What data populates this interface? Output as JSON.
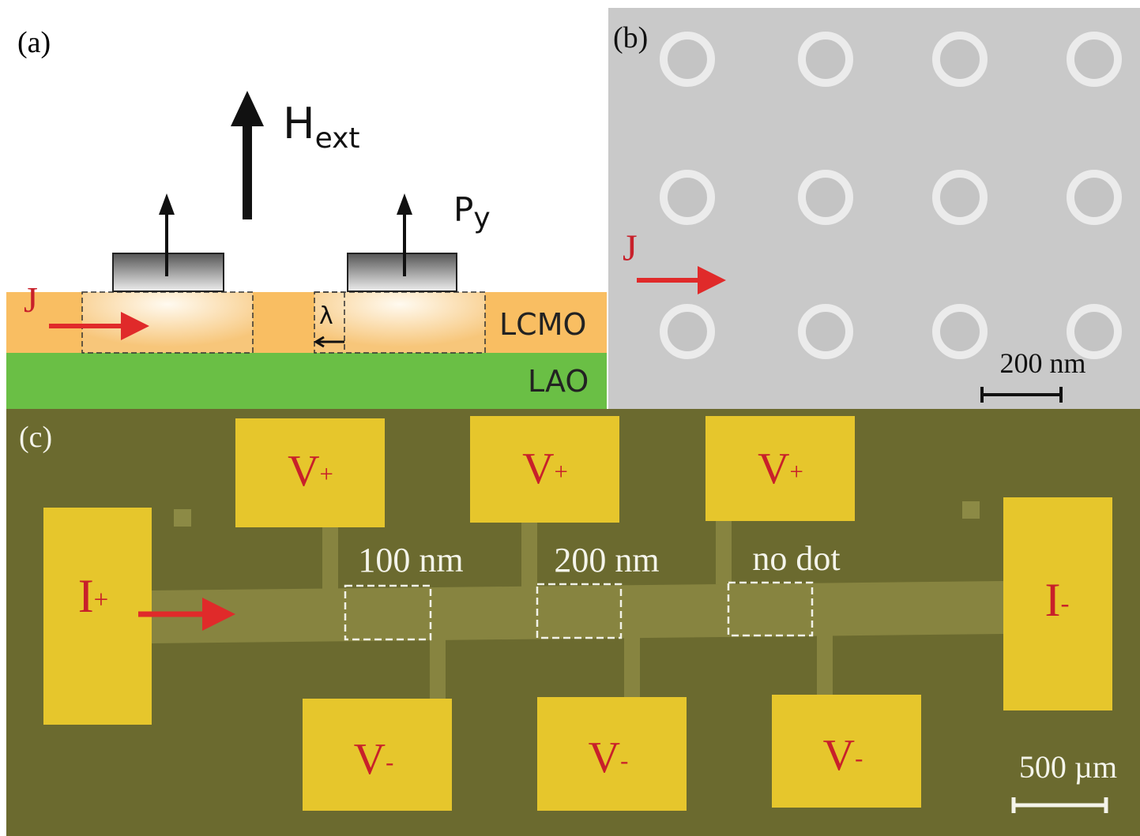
{
  "panel_a": {
    "label": "(a)",
    "field": {
      "main": "H",
      "sub": "ext"
    },
    "magnet": {
      "main": "P",
      "sub": "y"
    },
    "current": "J",
    "layer_top": "LCMO",
    "layer_bottom": "LAO",
    "penetration": "λ"
  },
  "panel_b": {
    "label": "(b)",
    "current": "J",
    "scale": "200 nm"
  },
  "panel_c": {
    "label": "(c)",
    "top_pads": [
      {
        "main": "V",
        "sub": "+"
      },
      {
        "main": "V",
        "sub": "+"
      },
      {
        "main": "V",
        "sub": "+"
      }
    ],
    "bottom_pads": [
      {
        "main": "V",
        "sub": "-"
      },
      {
        "main": "V",
        "sub": "-"
      },
      {
        "main": "V",
        "sub": "-"
      }
    ],
    "left_pad": {
      "main": "I",
      "sub": "+"
    },
    "right_pad": {
      "main": "I",
      "sub": "-"
    },
    "regions": [
      "100 nm",
      "200 nm",
      "no dot"
    ],
    "scale": "500 µm"
  }
}
